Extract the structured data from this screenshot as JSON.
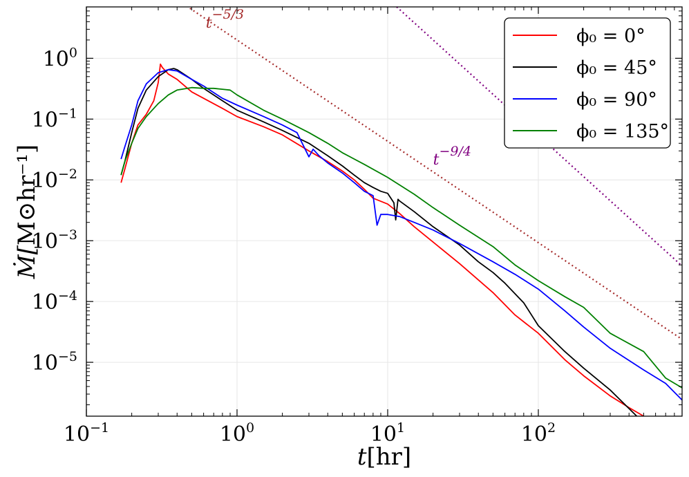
{
  "chart_data": {
    "type": "line",
    "xscale": "log",
    "yscale": "log",
    "xlim": [
      0.1,
      900
    ],
    "ylim": [
      1.3e-06,
      7
    ],
    "xlabel": "t[hr]",
    "ylabel": "Ṁ[M⊙hr⁻¹]",
    "grid": true,
    "legend_position": "top-right",
    "x_ticks": [
      {
        "base": "10",
        "exp": "−1",
        "value": 0.1
      },
      {
        "base": "10",
        "exp": "0",
        "value": 1
      },
      {
        "base": "10",
        "exp": "1",
        "value": 10
      },
      {
        "base": "10",
        "exp": "2",
        "value": 100
      }
    ],
    "y_ticks": [
      {
        "base": "10",
        "exp": "0",
        "value": 1
      },
      {
        "base": "10",
        "exp": "−1",
        "value": 0.1
      },
      {
        "base": "10",
        "exp": "−2",
        "value": 0.01
      },
      {
        "base": "10",
        "exp": "−3",
        "value": 0.001
      },
      {
        "base": "10",
        "exp": "−4",
        "value": 0.0001
      },
      {
        "base": "10",
        "exp": "−5",
        "value": 1e-05
      }
    ],
    "series": [
      {
        "name": "ϕ0 = 0°",
        "legend_label": "ϕ₀ = 0°",
        "color": "#ff0000",
        "x": [
          0.17,
          0.18,
          0.2,
          0.22,
          0.25,
          0.28,
          0.3,
          0.31,
          0.32,
          0.35,
          0.4,
          0.5,
          0.6,
          0.8,
          1.0,
          1.5,
          2.0,
          3.0,
          4.0,
          5.0,
          6.0,
          7.0,
          8.0,
          10.0,
          12.0,
          15.0,
          20.0,
          30.0,
          50.0,
          70.0,
          100.0,
          150.0,
          200.0,
          300.0,
          400.0,
          500.0
        ],
        "y": [
          0.009,
          0.015,
          0.04,
          0.08,
          0.12,
          0.2,
          0.4,
          0.8,
          0.7,
          0.55,
          0.45,
          0.28,
          0.22,
          0.15,
          0.11,
          0.075,
          0.055,
          0.03,
          0.02,
          0.014,
          0.01,
          0.007,
          0.005,
          0.004,
          0.0028,
          0.0017,
          0.00095,
          0.00042,
          0.00014,
          6e-05,
          3e-05,
          1.1e-05,
          6e-06,
          2.8e-06,
          1.8e-06,
          1.3e-06
        ]
      },
      {
        "name": "ϕ0 = 45°",
        "legend_label": "ϕ₀ = 45°",
        "color": "#000000",
        "x": [
          0.17,
          0.18,
          0.2,
          0.22,
          0.25,
          0.3,
          0.35,
          0.38,
          0.4,
          0.5,
          0.6,
          0.8,
          1.0,
          1.5,
          2.0,
          3.0,
          4.0,
          5.0,
          6.0,
          7.0,
          8.0,
          9.0,
          10.0,
          11.0,
          11.3,
          11.7,
          12.0,
          15.0,
          20.0,
          30.0,
          40.0,
          50.0,
          60.0,
          80.0,
          100.0,
          150.0,
          200.0,
          300.0,
          450.0
        ],
        "y": [
          0.012,
          0.02,
          0.06,
          0.15,
          0.3,
          0.5,
          0.65,
          0.68,
          0.65,
          0.45,
          0.32,
          0.2,
          0.14,
          0.09,
          0.065,
          0.04,
          0.025,
          0.017,
          0.012,
          0.009,
          0.0075,
          0.0065,
          0.006,
          0.0042,
          0.0022,
          0.0048,
          0.0045,
          0.003,
          0.0017,
          0.00085,
          0.00045,
          0.0003,
          0.0002,
          9.5e-05,
          4e-05,
          1.5e-05,
          8e-06,
          3.5e-06,
          1.3e-06
        ]
      },
      {
        "name": "ϕ0 = 90°",
        "legend_label": "ϕ₀ = 90°",
        "color": "#0000ff",
        "x": [
          0.17,
          0.18,
          0.2,
          0.22,
          0.25,
          0.3,
          0.35,
          0.4,
          0.5,
          0.6,
          0.8,
          1.0,
          1.5,
          2.0,
          2.5,
          3.0,
          3.2,
          3.5,
          4.0,
          5.0,
          6.0,
          7.0,
          8.0,
          8.5,
          9.0,
          10.0,
          12.0,
          15.0,
          20.0,
          30.0,
          50.0,
          70.0,
          100.0,
          150.0,
          200.0,
          300.0,
          500.0,
          700.0,
          900.0
        ],
        "y": [
          0.022,
          0.035,
          0.08,
          0.2,
          0.38,
          0.58,
          0.65,
          0.62,
          0.45,
          0.35,
          0.22,
          0.17,
          0.11,
          0.08,
          0.06,
          0.024,
          0.032,
          0.025,
          0.019,
          0.013,
          0.009,
          0.0065,
          0.0055,
          0.0018,
          0.0027,
          0.0027,
          0.0025,
          0.002,
          0.0015,
          0.0009,
          0.00045,
          0.00028,
          0.00016,
          7e-05,
          3.8e-05,
          1.7e-05,
          7.5e-06,
          4.5e-06,
          2.4e-06
        ]
      },
      {
        "name": "ϕ0 = 135°",
        "legend_label": "ϕ₀ = 135°",
        "color": "#008000",
        "x": [
          0.17,
          0.18,
          0.2,
          0.22,
          0.25,
          0.3,
          0.35,
          0.4,
          0.5,
          0.6,
          0.7,
          0.8,
          0.9,
          1.0,
          1.5,
          2.0,
          3.0,
          4.0,
          5.0,
          7.0,
          10.0,
          15.0,
          20.0,
          30.0,
          50.0,
          70.0,
          100.0,
          150.0,
          200.0,
          300.0,
          500.0,
          700.0,
          900.0
        ],
        "y": [
          0.012,
          0.02,
          0.04,
          0.07,
          0.11,
          0.18,
          0.25,
          0.3,
          0.33,
          0.32,
          0.32,
          0.31,
          0.3,
          0.25,
          0.14,
          0.1,
          0.06,
          0.04,
          0.028,
          0.018,
          0.011,
          0.0058,
          0.0035,
          0.0018,
          0.0008,
          0.0004,
          0.00022,
          0.00012,
          8e-05,
          3e-05,
          1.5e-05,
          5.5e-06,
          3.8e-06
        ]
      }
    ],
    "reference_lines": [
      {
        "label_base": "t",
        "label_exp": "−5/3",
        "slope": -1.6667,
        "anchor_x": 1.0,
        "anchor_y": 2.0,
        "color": "#a52a2a",
        "x_range": [
          0.17,
          900
        ],
        "label_x": 0.62,
        "label_y": 3.2
      },
      {
        "label_base": "t",
        "label_exp": "−9/4",
        "slope": -2.25,
        "anchor_x": 1.0,
        "anchor_y": 1700,
        "color": "#800080",
        "x_range": [
          1.0,
          900
        ],
        "label_x": 20,
        "label_y": 0.018
      }
    ]
  }
}
